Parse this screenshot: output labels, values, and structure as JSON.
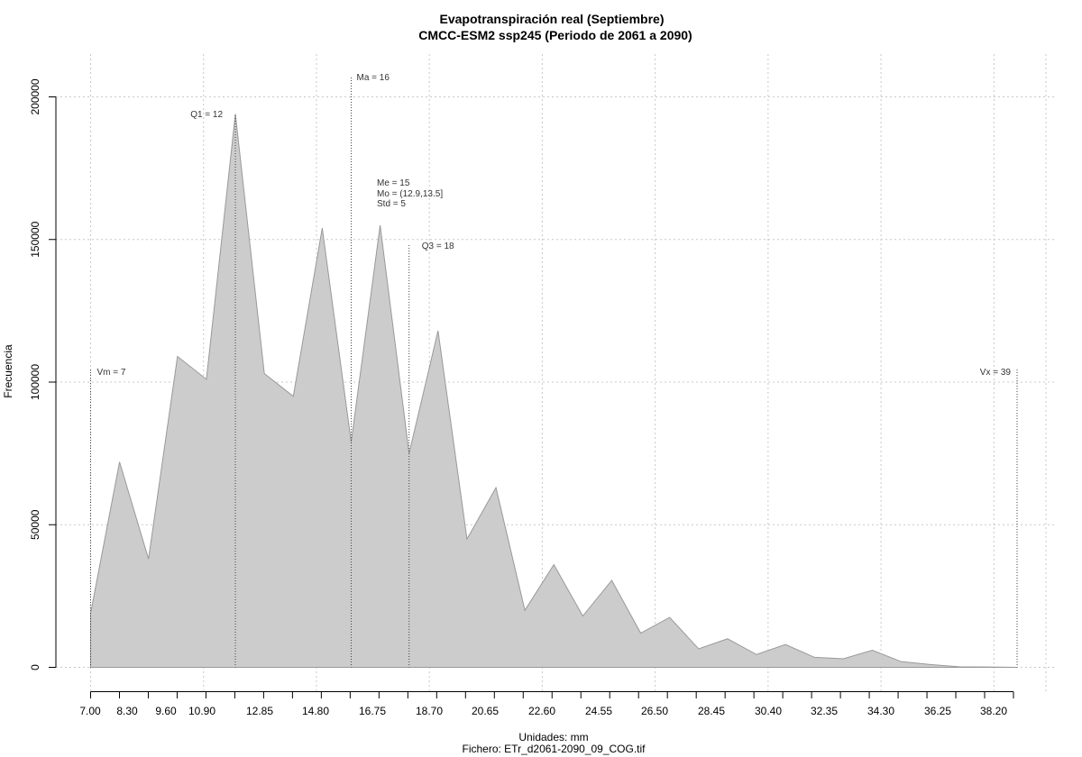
{
  "chart_data": {
    "type": "area",
    "title": "Evapotranspiración real (Septiembre)",
    "subtitle": "CMCC-ESM2 ssp245 (Periodo de 2061 a 2090)",
    "xlabel": "Unidades: mm",
    "xlabel2": "Fichero: ETr_d2061-2090_09_COG.tif",
    "ylabel": "Frecuencia",
    "xlim": [
      7.0,
      39.0
    ],
    "ylim": [
      0,
      200000
    ],
    "x_ticks": [
      "7.00",
      "8.30",
      "9.60",
      "10.90",
      "12.85",
      "14.80",
      "16.75",
      "18.70",
      "20.65",
      "22.60",
      "24.55",
      "26.50",
      "28.45",
      "30.40",
      "32.35",
      "34.30",
      "36.25",
      "38.20"
    ],
    "y_ticks": [
      "0",
      "50000",
      "100000",
      "150000",
      "200000"
    ],
    "grid": true,
    "fill_color": "#cccccc",
    "line_color": "#999999",
    "x": [
      7.0,
      8.0,
      9.0,
      10.0,
      11.0,
      12.0,
      13.0,
      14.0,
      15.0,
      16.0,
      17.0,
      18.0,
      19.0,
      20.0,
      21.0,
      22.0,
      23.0,
      24.0,
      25.0,
      26.0,
      27.0,
      28.0,
      29.0,
      30.0,
      31.0,
      32.0,
      33.0,
      34.0,
      35.0,
      36.0,
      37.0,
      38.0,
      39.0
    ],
    "y": [
      19000,
      72000,
      38000,
      109000,
      101000,
      194000,
      103000,
      95000,
      154000,
      79000,
      155000,
      75000,
      118000,
      45000,
      63000,
      20000,
      36000,
      18000,
      30500,
      12000,
      17500,
      6500,
      10000,
      4500,
      8000,
      3500,
      3000,
      6000,
      2000,
      1000,
      200,
      100,
      0
    ],
    "annotations": [
      {
        "label": "Vm = 7",
        "x": 7.0
      },
      {
        "label": "Q1 = 12",
        "x": 12.0
      },
      {
        "label": "Ma = 16",
        "x": 16.0
      },
      {
        "label": "Me = 15",
        "x": 16.9
      },
      {
        "label": "Mo = (12.9,13.5]",
        "x": 16.9
      },
      {
        "label": "Std = 5",
        "x": 16.9
      },
      {
        "label": "Q3 = 18",
        "x": 18.0
      },
      {
        "label": "Vx = 39",
        "x": 39.0
      }
    ]
  }
}
